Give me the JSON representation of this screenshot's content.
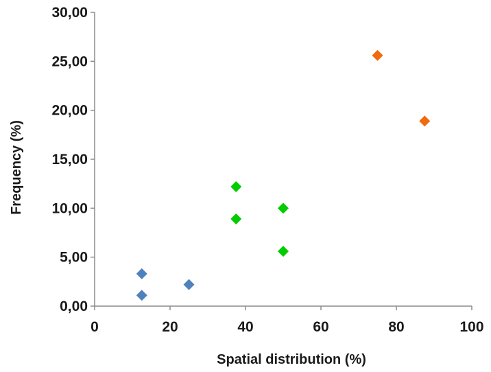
{
  "chart_data": {
    "type": "scatter",
    "title": "",
    "xlabel": "Spatial distribution (%)",
    "ylabel": "Frequency (%)",
    "xlim": [
      0,
      100
    ],
    "ylim": [
      0,
      30
    ],
    "x_ticks": [
      "0",
      "20",
      "40",
      "60",
      "80",
      "100"
    ],
    "y_ticks": [
      "0,00",
      "5,00",
      "10,00",
      "15,00",
      "20,00",
      "25,00",
      "30,00"
    ],
    "grid": false,
    "legend": "none",
    "marker": "diamond",
    "series": [
      {
        "color": "#4f81bd",
        "points": [
          {
            "x": 12.5,
            "y": 3.3
          },
          {
            "x": 12.5,
            "y": 1.1
          },
          {
            "x": 25,
            "y": 2.2
          }
        ]
      },
      {
        "color": "#00cc00",
        "points": [
          {
            "x": 37.5,
            "y": 12.2
          },
          {
            "x": 37.5,
            "y": 8.9
          },
          {
            "x": 50,
            "y": 10.0
          },
          {
            "x": 50,
            "y": 5.6
          }
        ]
      },
      {
        "color": "#f26a10",
        "points": [
          {
            "x": 75,
            "y": 25.6
          },
          {
            "x": 87.5,
            "y": 18.9
          }
        ]
      }
    ]
  }
}
